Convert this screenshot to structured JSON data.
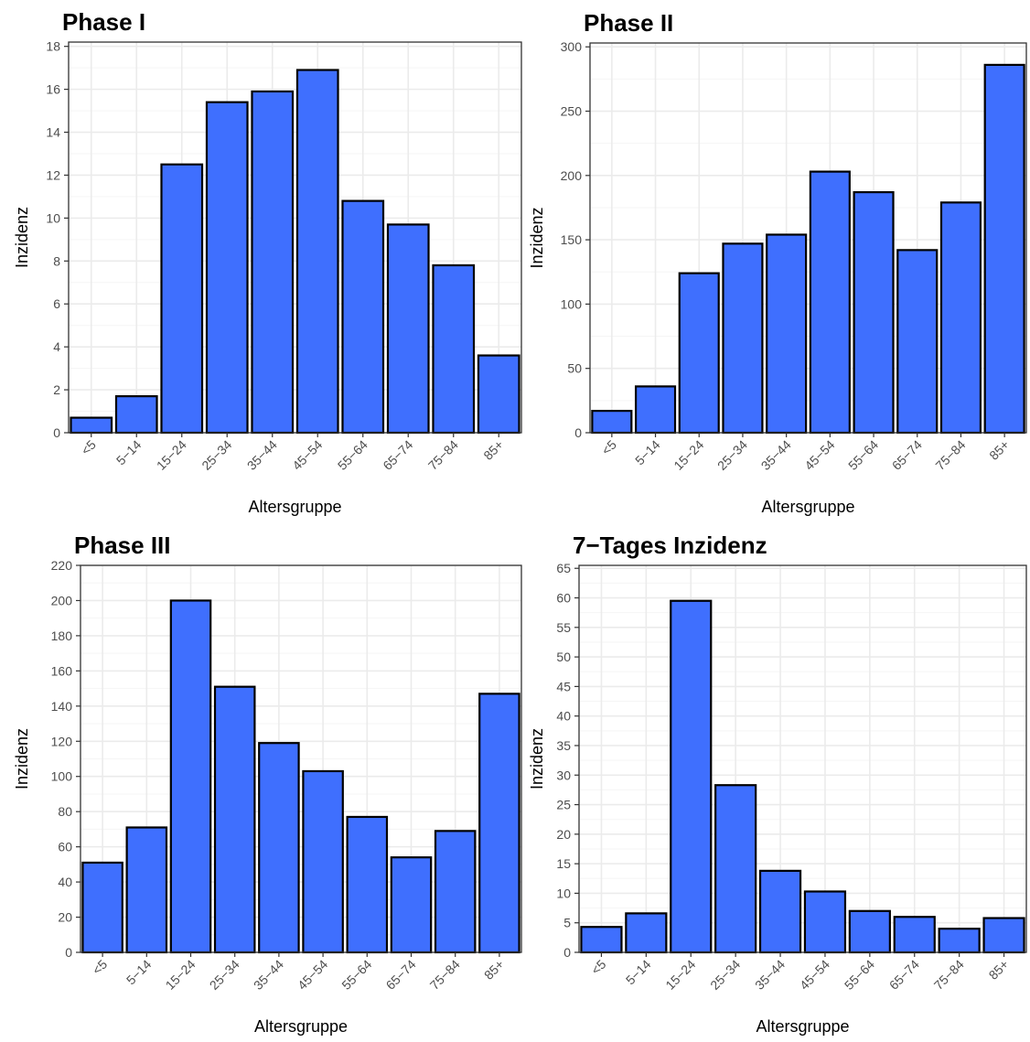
{
  "colors": {
    "bar_fill": "#3f6ffe",
    "bar_stroke": "#000000",
    "grid": "#ebebeb",
    "grid_minor": "#f5f5f5"
  },
  "chart_data": [
    {
      "type": "bar",
      "title": "Phase I",
      "xlabel": "Altersgruppe",
      "ylabel": "Inzidenz",
      "categories": [
        "<5",
        "5−14",
        "15−24",
        "25−34",
        "35−44",
        "45−54",
        "55−64",
        "65−74",
        "75−84",
        "85+"
      ],
      "values": [
        0.7,
        1.7,
        12.5,
        15.4,
        15.9,
        16.9,
        10.8,
        9.7,
        7.8,
        3.6
      ],
      "ylim": [
        0,
        18.2
      ],
      "yticks": [
        0,
        2,
        4,
        6,
        8,
        10,
        12,
        14,
        16,
        18
      ],
      "grid": true
    },
    {
      "type": "bar",
      "title": "Phase II",
      "xlabel": "Altersgruppe",
      "ylabel": "Inzidenz",
      "categories": [
        "<5",
        "5−14",
        "15−24",
        "25−34",
        "35−44",
        "45−54",
        "55−64",
        "65−74",
        "75−84",
        "85+"
      ],
      "values": [
        17,
        36,
        124,
        147,
        154,
        203,
        187,
        142,
        179,
        286
      ],
      "ylim": [
        0,
        303
      ],
      "yticks": [
        0,
        50,
        100,
        150,
        200,
        250,
        300
      ],
      "grid": true
    },
    {
      "type": "bar",
      "title": "Phase III",
      "xlabel": "Altersgruppe",
      "ylabel": "Inzidenz",
      "categories": [
        "<5",
        "5−14",
        "15−24",
        "25−34",
        "35−44",
        "45−54",
        "55−64",
        "65−74",
        "75−84",
        "85+"
      ],
      "values": [
        51,
        71,
        200,
        151,
        119,
        103,
        77,
        54,
        69,
        147
      ],
      "ylim": [
        0,
        220
      ],
      "yticks": [
        0,
        20,
        40,
        60,
        80,
        100,
        120,
        140,
        160,
        180,
        200,
        220
      ],
      "grid": true
    },
    {
      "type": "bar",
      "title": "7−Tages Inzidenz",
      "xlabel": "Altersgruppe",
      "ylabel": "Inzidenz",
      "categories": [
        "<5",
        "5−14",
        "15−24",
        "25−34",
        "35−44",
        "45−54",
        "55−64",
        "65−74",
        "75−84",
        "85+"
      ],
      "values": [
        4.3,
        6.6,
        59.5,
        28.3,
        13.8,
        10.3,
        7.0,
        6.0,
        4.0,
        5.8
      ],
      "ylim": [
        0,
        65.5
      ],
      "yticks": [
        0,
        5,
        10,
        15,
        20,
        25,
        30,
        35,
        40,
        45,
        50,
        55,
        60,
        65
      ],
      "grid": true
    }
  ]
}
